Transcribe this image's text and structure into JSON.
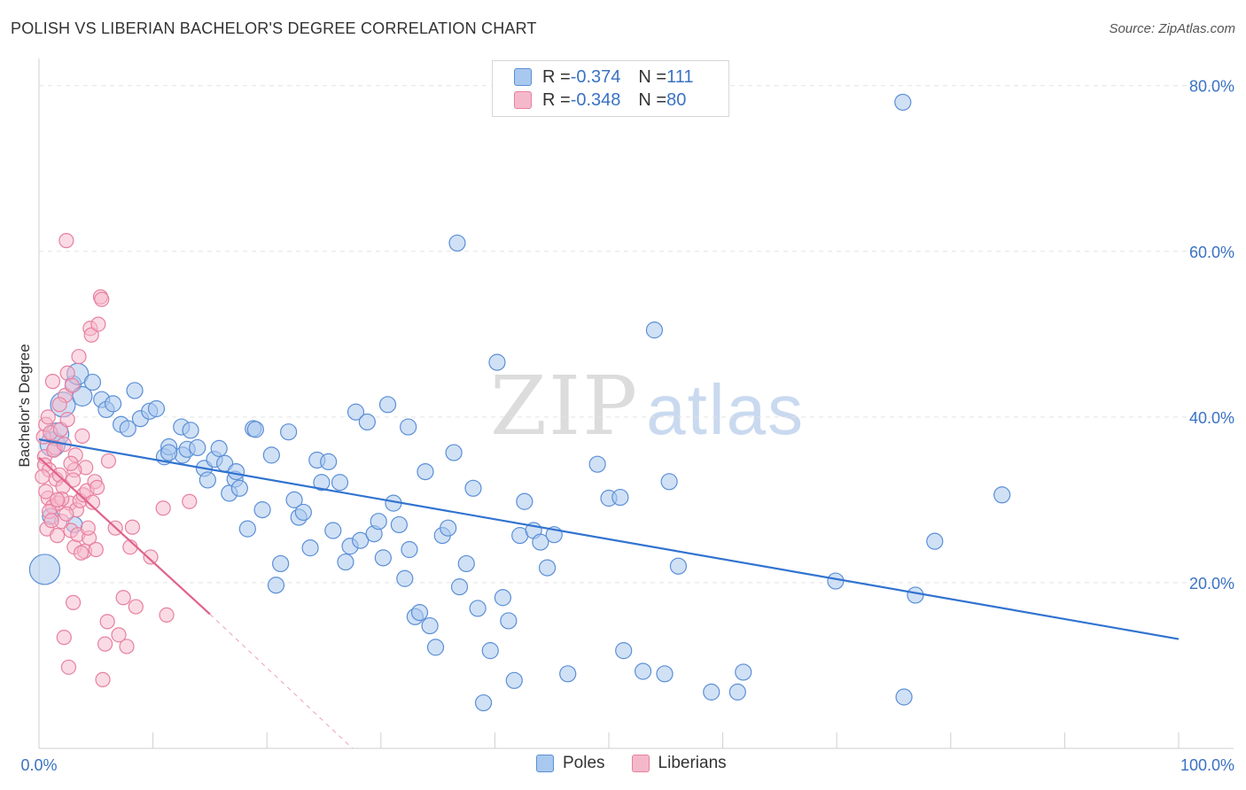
{
  "header": {
    "title": "POLISH VS LIBERIAN BACHELOR'S DEGREE CORRELATION CHART",
    "source": "Source: ZipAtlas.com"
  },
  "legend_top": {
    "poles": {
      "r_label": "R = ",
      "r_value": "-0.374",
      "n_label": "N = ",
      "n_value": "111"
    },
    "liberians": {
      "r_label": "R = ",
      "r_value": "-0.348",
      "n_label": "N = ",
      "n_value": "80"
    }
  },
  "legend_bottom": {
    "poles": "Poles",
    "liberians": "Liberians"
  },
  "watermark": {
    "zip": "ZIP",
    "atlas": "atlas"
  },
  "colors": {
    "poles_fill": "#a9c8ef",
    "poles_stroke": "#5b8fd6",
    "poles_line": "#3173d0",
    "liberians_fill": "#f5b8cb",
    "liberians_stroke": "#e8809f",
    "liberians_line": "#e0628a",
    "tick_label": "#3a72c4",
    "grid": "#e3e3e3"
  },
  "chart_data": {
    "type": "scatter",
    "title": "POLISH VS LIBERIAN BACHELOR'S DEGREE CORRELATION CHART",
    "xlabel": "",
    "ylabel": "Bachelor's Degree",
    "xlim": [
      0,
      100
    ],
    "ylim": [
      0,
      82
    ],
    "x_tick_labels": [
      "0.0%",
      "100.0%"
    ],
    "y_ticks": [
      20,
      40,
      60,
      80
    ],
    "y_tick_labels": [
      "20.0%",
      "40.0%",
      "60.0%",
      "80.0%"
    ],
    "grid": true,
    "legend_position": "top-center",
    "series": [
      {
        "name": "Poles",
        "r": -0.374,
        "n": 111,
        "trend": {
          "x0": 0,
          "y0": 37.3,
          "x1": 100,
          "y1": 13.2
        },
        "points": [
          [
            0.5,
            21.6
          ],
          [
            1.0,
            28.0
          ],
          [
            1.2,
            36.7
          ],
          [
            1.6,
            37.9
          ],
          [
            2.1,
            41.5
          ],
          [
            3.0,
            44.0
          ],
          [
            3.4,
            45.2
          ],
          [
            3.8,
            42.5
          ],
          [
            4.7,
            44.2
          ],
          [
            5.5,
            42.1
          ],
          [
            5.9,
            40.9
          ],
          [
            6.5,
            41.6
          ],
          [
            7.2,
            39.1
          ],
          [
            7.8,
            38.6
          ],
          [
            8.4,
            43.2
          ],
          [
            8.9,
            39.8
          ],
          [
            9.7,
            40.7
          ],
          [
            10.3,
            41.0
          ],
          [
            11.0,
            35.2
          ],
          [
            11.4,
            36.4
          ],
          [
            12.5,
            38.8
          ],
          [
            12.6,
            35.4
          ],
          [
            13.0,
            36.1
          ],
          [
            13.3,
            38.4
          ],
          [
            13.9,
            36.3
          ],
          [
            14.5,
            33.8
          ],
          [
            14.8,
            32.4
          ],
          [
            15.4,
            34.9
          ],
          [
            15.8,
            36.2
          ],
          [
            16.3,
            34.4
          ],
          [
            16.7,
            30.8
          ],
          [
            17.2,
            32.5
          ],
          [
            17.6,
            31.4
          ],
          [
            18.3,
            26.5
          ],
          [
            18.8,
            38.6
          ],
          [
            19.0,
            38.5
          ],
          [
            19.6,
            28.8
          ],
          [
            20.4,
            35.4
          ],
          [
            20.8,
            19.7
          ],
          [
            21.2,
            22.3
          ],
          [
            21.9,
            38.2
          ],
          [
            22.4,
            30.0
          ],
          [
            22.8,
            27.9
          ],
          [
            23.2,
            28.5
          ],
          [
            23.8,
            24.2
          ],
          [
            24.4,
            34.8
          ],
          [
            24.8,
            32.1
          ],
          [
            25.4,
            34.6
          ],
          [
            25.8,
            26.3
          ],
          [
            26.4,
            32.1
          ],
          [
            26.9,
            22.5
          ],
          [
            27.3,
            24.4
          ],
          [
            27.8,
            40.6
          ],
          [
            28.2,
            25.1
          ],
          [
            28.8,
            39.4
          ],
          [
            29.4,
            25.9
          ],
          [
            29.8,
            27.4
          ],
          [
            30.2,
            23.0
          ],
          [
            30.6,
            41.5
          ],
          [
            31.1,
            29.6
          ],
          [
            31.6,
            27.0
          ],
          [
            32.1,
            20.5
          ],
          [
            32.5,
            24.0
          ],
          [
            33.0,
            15.9
          ],
          [
            33.4,
            16.4
          ],
          [
            33.9,
            33.4
          ],
          [
            34.3,
            14.8
          ],
          [
            34.8,
            12.2
          ],
          [
            35.4,
            25.7
          ],
          [
            35.9,
            26.6
          ],
          [
            36.4,
            35.7
          ],
          [
            36.9,
            19.5
          ],
          [
            37.5,
            22.3
          ],
          [
            38.1,
            31.4
          ],
          [
            38.5,
            16.9
          ],
          [
            39.0,
            5.5
          ],
          [
            39.6,
            11.8
          ],
          [
            40.2,
            46.6
          ],
          [
            40.7,
            18.2
          ],
          [
            41.2,
            15.4
          ],
          [
            41.7,
            8.2
          ],
          [
            42.2,
            25.7
          ],
          [
            42.6,
            29.8
          ],
          [
            43.4,
            26.3
          ],
          [
            44.0,
            24.9
          ],
          [
            44.6,
            21.8
          ],
          [
            45.2,
            25.8
          ],
          [
            46.4,
            9.0
          ],
          [
            49.0,
            34.3
          ],
          [
            50.0,
            30.2
          ],
          [
            51.0,
            30.3
          ],
          [
            51.3,
            11.8
          ],
          [
            53.0,
            9.3
          ],
          [
            54.0,
            50.5
          ],
          [
            54.9,
            9.0
          ],
          [
            55.3,
            32.2
          ],
          [
            56.1,
            22.0
          ],
          [
            59.0,
            6.8
          ],
          [
            61.3,
            6.8
          ],
          [
            61.8,
            9.2
          ],
          [
            69.9,
            20.2
          ],
          [
            75.8,
            78.0
          ],
          [
            75.9,
            6.2
          ],
          [
            76.9,
            18.5
          ],
          [
            78.6,
            25.0
          ],
          [
            84.5,
            30.6
          ],
          [
            36.7,
            61.0
          ],
          [
            32.4,
            38.8
          ],
          [
            11.4,
            35.7
          ],
          [
            17.3,
            33.4
          ],
          [
            3.1,
            27.0
          ]
        ]
      },
      {
        "name": "Liberians",
        "r": -0.348,
        "n": 80,
        "trend": {
          "x0": 0,
          "y0": 35.1,
          "x1": 15.0,
          "y1": 16.2,
          "dash_to_x": 27.5,
          "dash_to_y": 0
        },
        "points": [
          [
            0.4,
            37.6
          ],
          [
            0.5,
            35.2
          ],
          [
            0.5,
            34.2
          ],
          [
            0.6,
            39.1
          ],
          [
            0.7,
            26.5
          ],
          [
            0.8,
            40.0
          ],
          [
            0.8,
            30.2
          ],
          [
            0.9,
            33.6
          ],
          [
            1.0,
            38.1
          ],
          [
            1.2,
            44.3
          ],
          [
            1.2,
            29.2
          ],
          [
            1.4,
            36.3
          ],
          [
            1.5,
            32.5
          ],
          [
            1.6,
            25.7
          ],
          [
            1.7,
            29.6
          ],
          [
            1.8,
            33.0
          ],
          [
            1.9,
            38.5
          ],
          [
            2.0,
            27.4
          ],
          [
            2.1,
            31.6
          ],
          [
            2.2,
            13.4
          ],
          [
            2.3,
            42.6
          ],
          [
            2.4,
            61.3
          ],
          [
            2.5,
            45.3
          ],
          [
            2.6,
            9.8
          ],
          [
            2.7,
            29.6
          ],
          [
            2.8,
            26.3
          ],
          [
            2.9,
            43.8
          ],
          [
            3.0,
            17.6
          ],
          [
            3.1,
            24.3
          ],
          [
            3.2,
            35.4
          ],
          [
            3.3,
            28.8
          ],
          [
            3.4,
            25.8
          ],
          [
            3.5,
            47.3
          ],
          [
            3.6,
            29.9
          ],
          [
            3.8,
            37.7
          ],
          [
            3.9,
            30.6
          ],
          [
            4.0,
            23.8
          ],
          [
            4.1,
            33.9
          ],
          [
            4.2,
            31.1
          ],
          [
            4.4,
            25.4
          ],
          [
            4.5,
            50.7
          ],
          [
            4.6,
            49.9
          ],
          [
            4.7,
            29.7
          ],
          [
            4.9,
            32.2
          ],
          [
            5.0,
            24.0
          ],
          [
            5.1,
            31.5
          ],
          [
            5.2,
            51.2
          ],
          [
            5.4,
            54.5
          ],
          [
            5.5,
            54.2
          ],
          [
            5.6,
            8.3
          ],
          [
            5.8,
            12.6
          ],
          [
            6.0,
            15.3
          ],
          [
            6.1,
            34.7
          ],
          [
            6.7,
            26.6
          ],
          [
            7.0,
            13.7
          ],
          [
            7.4,
            18.2
          ],
          [
            7.7,
            12.3
          ],
          [
            8.0,
            24.3
          ],
          [
            8.2,
            26.7
          ],
          [
            8.5,
            17.1
          ],
          [
            9.8,
            23.1
          ],
          [
            10.9,
            29.0
          ],
          [
            11.2,
            16.1
          ],
          [
            13.2,
            29.8
          ],
          [
            0.9,
            28.6
          ],
          [
            1.3,
            36.0
          ],
          [
            2.0,
            30.1
          ],
          [
            2.5,
            39.7
          ],
          [
            3.1,
            33.6
          ],
          [
            0.6,
            31.0
          ],
          [
            1.1,
            27.5
          ],
          [
            1.8,
            41.5
          ],
          [
            2.4,
            28.3
          ],
          [
            2.8,
            34.4
          ],
          [
            3.7,
            23.6
          ],
          [
            4.3,
            26.6
          ],
          [
            0.3,
            32.8
          ],
          [
            1.6,
            30.0
          ],
          [
            2.2,
            36.7
          ],
          [
            3.0,
            32.4
          ]
        ]
      }
    ]
  }
}
